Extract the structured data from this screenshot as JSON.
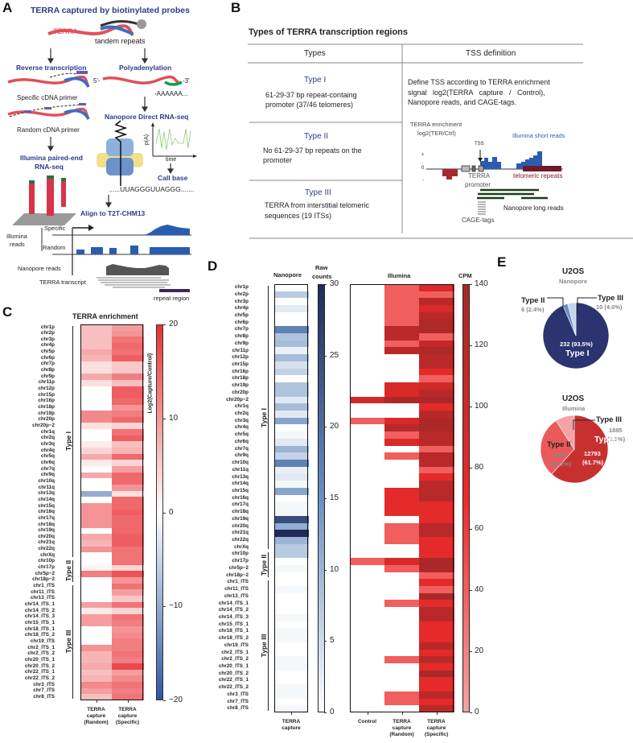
{
  "panels": {
    "a": "A",
    "b": "B",
    "c": "C",
    "d": "D",
    "e": "E"
  },
  "panel_a": {
    "title": "TERRA captured by biotinylated probes",
    "terra": "TERRA",
    "tandem_repeats": "tandem repeats",
    "reverse_transcription": "Reverse transcription",
    "polyadenylation": "Polyadenylation",
    "five_prime": "5'-",
    "three_prime": "-3'",
    "polya": "-AAAAAA...",
    "specific_primer": "Specific cDNA primer",
    "random_primer": "Random cDNA primer",
    "illumina_line1": "Illumina paired-end",
    "illumina_line2": "RNA-seq",
    "nanopore_title": "Nanopore Direct RNA-seq",
    "pa_axis": "p(A)",
    "time_axis": "time",
    "call_base": "Call base",
    "sequence": "......UUAGGGUUAGGG.......",
    "align": "Align to T2T-CHM13",
    "track_specific": "Specific",
    "track_random": "Random",
    "illumina_reads_1": "Illumina",
    "illumina_reads_2": "reads",
    "nanopore_reads": "Nanopore reads",
    "terra_transcript": "TERRA transcript",
    "repeat_region": "repeat region"
  },
  "panel_b": {
    "title": "Types of TERRA transcription regions",
    "col_types": "Types",
    "col_tss": "TSS definition",
    "rows": [
      {
        "type": "Type I",
        "desc1": "61-29-37 bp repeat-containg",
        "desc2": "promoter (37/46 telomeres)"
      },
      {
        "type": "Type II",
        "desc1": "No 61-29-37 bp repeats on the",
        "desc2": "promoter"
      },
      {
        "type": "Type III",
        "desc1": "TERRA from interstitial telomeric",
        "desc2": "sequences (19 ITSs)"
      }
    ],
    "tss_text1": "Define TSS according to TERRA enrichment",
    "tss_text2": "signal   log2(TERRA   capture   /   Control),",
    "tss_text3": "Nanopore reads, and CAGE-tags.",
    "diagram": {
      "enrichment1": "TERRA enrichment",
      "enrichment2": "log2(TER/Ctrl)",
      "illumina_short": "Illumina short reads",
      "tss": "TSS",
      "plus": "+",
      "zero": "0",
      "minus": "-",
      "promoter1": "TERRA",
      "promoter2": "promoter",
      "telomeric": "telomeric repeats",
      "nanopore_long": "Nanopore long reads",
      "cage": "CAGE-tags"
    }
  },
  "colors": {
    "title_blue": "#2e3a8a",
    "terra_red": "#e0505a",
    "illumina_blue": "#2a5db0",
    "telomere_dark": "#6e1a2a",
    "nanopore_navy": "#2b3470",
    "pie_red_dark": "#c83030",
    "pie_red_mid": "#ea5a5a",
    "pie_red_light": "#f3a3a3"
  },
  "row_labels": [
    "chr1p",
    "chr2p",
    "chr3p",
    "chr4p",
    "chr5p",
    "chr6p",
    "chr7p",
    "chr8p",
    "chr9p",
    "chr11p",
    "chr12p",
    "chr15p",
    "chr16p",
    "chr18p",
    "chr19p",
    "chr20p",
    "chr20p−2",
    "chr1q",
    "chr2q",
    "chr3q",
    "chr4q",
    "chr5q",
    "chr6q",
    "chr7q",
    "chr9q",
    "chr10q",
    "chr11q",
    "chr13q",
    "chr14q",
    "chr15q",
    "chr16q",
    "chr17q",
    "chr18q",
    "chr19q",
    "chr20q",
    "chr21q",
    "chr22q",
    "chrXq",
    "chr10p",
    "chr17p",
    "chr5p−2",
    "chr18p−2",
    "chr1_ITS",
    "chr11_ITS",
    "chr13_ITS",
    "chr14_ITS_1",
    "chr14_ITS_2",
    "chr14_ITS_3",
    "chr15_ITS_1",
    "chr18_ITS_1",
    "chr18_ITS_2",
    "chr19_ITS",
    "chr2_ITS_1",
    "chr2_ITS_2",
    "chr20_ITS_1",
    "chr20_ITS_2",
    "chr22_ITS_1",
    "chr22_ITS_2",
    "chr3_ITS",
    "chr7_ITS",
    "chr8_ITS"
  ],
  "type_groups": [
    {
      "label": "Type I",
      "start": 0,
      "end": 37
    },
    {
      "label": "Type II",
      "start": 38,
      "end": 41
    },
    {
      "label": "Type III",
      "start": 42,
      "end": 60
    }
  ],
  "chart_data": [
    {
      "type": "heatmap",
      "title": "TERRA enrichment",
      "colorbar_label": "Log2(Capture/Control)",
      "range": [
        -20,
        20
      ],
      "ticks": [
        "20",
        "10",
        "0",
        "−10",
        "−20"
      ],
      "columns": [
        {
          "l1": "TERRA",
          "l2": "capture",
          "l3": "(Random)"
        },
        {
          "l1": "TERRA",
          "l2": "capture",
          "l3": "(Specific)"
        }
      ],
      "values": {
        "random": [
          6,
          6,
          6,
          6,
          8,
          7,
          3,
          3,
          8,
          3,
          0,
          0,
          0,
          0,
          11,
          11,
          3,
          0,
          0,
          2,
          4,
          8,
          2,
          0,
          8,
          0,
          0,
          -10,
          0,
          10,
          10,
          10,
          10,
          0,
          8,
          7,
          10,
          0,
          0,
          1,
          12,
          0,
          0,
          0,
          0,
          9,
          2,
          9,
          9,
          0,
          0,
          0,
          10,
          7,
          7,
          8,
          6,
          7,
          11,
          9,
          6
        ],
        "specific": [
          9,
          10,
          13,
          14,
          13,
          15,
          5,
          5,
          12,
          6,
          15,
          15,
          14,
          10,
          12,
          14,
          4,
          13,
          15,
          6,
          7,
          14,
          4,
          9,
          14,
          14,
          10,
          3,
          14,
          14,
          15,
          14,
          14,
          14,
          15,
          15,
          13,
          13,
          13,
          4,
          16,
          10,
          13,
          9,
          5,
          13,
          4,
          13,
          12,
          10,
          11,
          12,
          12,
          13,
          12,
          17,
          9,
          11,
          13,
          12,
          13
        ]
      }
    },
    {
      "type": "heatmap",
      "title": "Nanopore",
      "colorbar_label1": "Raw",
      "colorbar_label2": "counts",
      "range": [
        0,
        30
      ],
      "ticks": [
        "30",
        "25",
        "20",
        "15",
        "10",
        "5",
        "0"
      ],
      "columns": [
        {
          "l1": "TERRA",
          "l2": "capture"
        }
      ],
      "values": {
        "capture": [
          0,
          7,
          0,
          3,
          0,
          0,
          17,
          8,
          9,
          2,
          9,
          4,
          6,
          0,
          8,
          8,
          3,
          9,
          3,
          12,
          0,
          1,
          3,
          10,
          6,
          17,
          2,
          3,
          1,
          12,
          0,
          1,
          1,
          25,
          11,
          30,
          10,
          7,
          7,
          0,
          1,
          0,
          0,
          1,
          0,
          0,
          0,
          1,
          0,
          1,
          1,
          0,
          0,
          1,
          1,
          0,
          0,
          1,
          1,
          0,
          1
        ]
      }
    },
    {
      "type": "heatmap",
      "title": "Illumina",
      "colorbar_label": "CPM",
      "range": [
        0,
        140
      ],
      "ticks": [
        "140",
        "120",
        "100",
        "80",
        "60",
        "40",
        "20",
        "0"
      ],
      "columns": [
        {
          "l1": "Control"
        },
        {
          "l1": "TERRA",
          "l2": "capture",
          "l3": "(Random)"
        },
        {
          "l1": "TERRA",
          "l2": "capture",
          "l3": "(Specific)"
        }
      ],
      "values": {
        "control": [
          0,
          0,
          0,
          0,
          0,
          0,
          0,
          0,
          0,
          0,
          0,
          0,
          0,
          0,
          0,
          0,
          95,
          0,
          0,
          40,
          0,
          0,
          0,
          0,
          0,
          0,
          0,
          0,
          0,
          0,
          0,
          0,
          0,
          0,
          0,
          0,
          0,
          0,
          0,
          40,
          0,
          0,
          0,
          0,
          0,
          0,
          0,
          0,
          0,
          0,
          0,
          0,
          0,
          0,
          0,
          0,
          0,
          0,
          0,
          0,
          0
        ],
        "random": [
          40,
          40,
          40,
          40,
          40,
          40,
          120,
          120,
          40,
          120,
          0,
          0,
          0,
          0,
          90,
          90,
          130,
          0,
          0,
          90,
          120,
          40,
          90,
          0,
          40,
          0,
          0,
          0,
          0,
          80,
          80,
          80,
          80,
          0,
          40,
          40,
          40,
          0,
          0,
          90,
          40,
          0,
          0,
          0,
          0,
          40,
          0,
          0,
          0,
          0,
          0,
          0,
          0,
          40,
          0,
          0,
          0,
          0,
          40,
          40,
          0
        ],
        "specific": [
          90,
          40,
          120,
          90,
          120,
          130,
          130,
          40,
          110,
          130,
          120,
          120,
          80,
          40,
          100,
          120,
          135,
          80,
          120,
          130,
          135,
          120,
          120,
          40,
          120,
          120,
          40,
          80,
          120,
          120,
          120,
          80,
          80,
          80,
          120,
          120,
          80,
          80,
          80,
          135,
          130,
          40,
          80,
          40,
          135,
          80,
          120,
          120,
          80,
          80,
          80,
          120,
          80,
          120,
          80,
          135,
          80,
          80,
          120,
          80,
          120
        ]
      }
    },
    {
      "type": "pie",
      "title": "U2OS",
      "subtitle": "Nanopore",
      "slices": [
        {
          "label": "Type I",
          "value": 232,
          "pct": "93.5%",
          "text": "232 (93.5%)",
          "color": "#2b3470"
        },
        {
          "label": "Type II",
          "value": 6,
          "pct": "2.4%",
          "text": "6 (2.4%)",
          "color": "#6a8ec4"
        },
        {
          "label": "Type III",
          "value": 10,
          "pct": "4.0%",
          "text": "10 (4.0%)",
          "color": "#c4d4ea"
        }
      ]
    },
    {
      "type": "pie",
      "title": "U2OS",
      "subtitle": "Illumina",
      "slices": [
        {
          "label": "Type I",
          "value": 12793,
          "pct": "61.7%",
          "text1": "12793",
          "text2": "(61.7%)",
          "color": "#c83030"
        },
        {
          "label": "Type II",
          "value": 6052,
          "pct": "29.2%",
          "text1": "6052",
          "text2": "(29.2%)",
          "color": "#ea5a5a"
        },
        {
          "label": "Type III",
          "value": 1885,
          "pct": "9.1%",
          "text1": "1885",
          "text2": "(9.1%)",
          "color": "#f3a3a3"
        }
      ]
    }
  ]
}
